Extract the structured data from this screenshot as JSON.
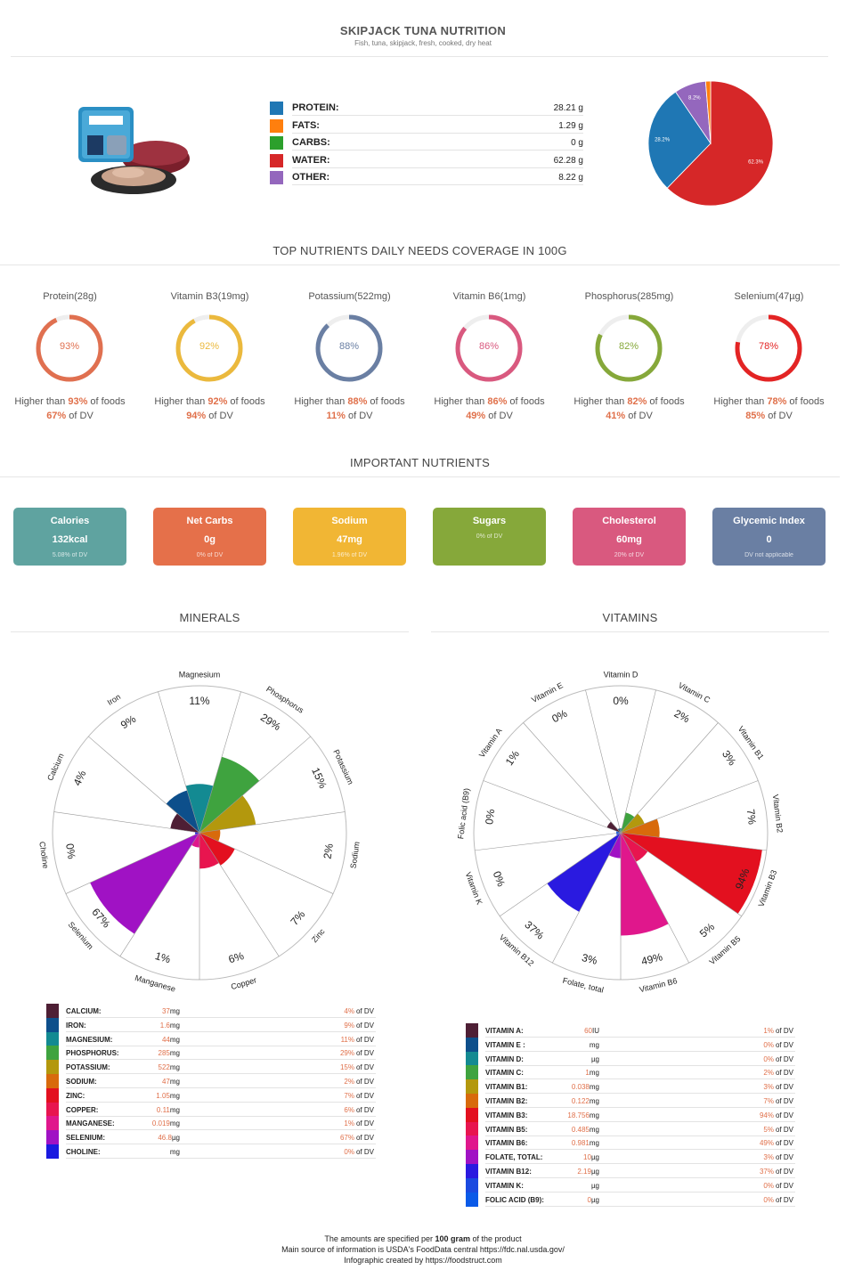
{
  "header": {
    "title": "SKIPJACK TUNA NUTRITION",
    "subtitle": "Fish, tuna, skipjack, fresh, cooked, dry heat"
  },
  "product_image": {
    "icon": "tuna-product-photo"
  },
  "macros": [
    {
      "label": "PROTEIN:",
      "value": "28.21 g",
      "color": "#1f77b4"
    },
    {
      "label": "FATS:",
      "value": "1.29 g",
      "color": "#ff7f0e"
    },
    {
      "label": "CARBS:",
      "value": "0 g",
      "color": "#2ca02c"
    },
    {
      "label": "WATER:",
      "value": "62.28 g",
      "color": "#d62728"
    },
    {
      "label": "OTHER:",
      "value": "8.22 g",
      "color": "#9467bd"
    }
  ],
  "coverage": {
    "title": "TOP NUTRIENTS DAILY NEEDS COVERAGE IN 100G",
    "items": [
      {
        "name": "Protein(28g)",
        "pct": 93,
        "pct_label": "93%",
        "higher_pre": "Higher than ",
        "higher_val": "93%",
        "higher_post": " of foods",
        "dv_val": "67%",
        "dv_post": " of DV",
        "color": "#e07050"
      },
      {
        "name": "Vitamin B3(19mg)",
        "pct": 92,
        "pct_label": "92%",
        "higher_pre": "Higher than ",
        "higher_val": "92%",
        "higher_post": " of foods",
        "dv_val": "94%",
        "dv_post": " of DV",
        "color": "#ebb93d"
      },
      {
        "name": "Potassium(522mg)",
        "pct": 88,
        "pct_label": "88%",
        "higher_pre": "Higher than ",
        "higher_val": "88%",
        "higher_post": " of foods",
        "dv_val": "11%",
        "dv_post": " of DV",
        "color": "#6a7fa3"
      },
      {
        "name": "Vitamin B6(1mg)",
        "pct": 86,
        "pct_label": "86%",
        "higher_pre": "Higher than ",
        "higher_val": "86%",
        "higher_post": " of foods",
        "dv_val": "49%",
        "dv_post": " of DV",
        "color": "#d9597f"
      },
      {
        "name": "Phosphorus(285mg)",
        "pct": 82,
        "pct_label": "82%",
        "higher_pre": "Higher than ",
        "higher_val": "82%",
        "higher_post": " of foods",
        "dv_val": "41%",
        "dv_post": " of DV",
        "color": "#86a83a"
      },
      {
        "name": "Selenium(47µg)",
        "pct": 78,
        "pct_label": "78%",
        "higher_pre": "Higher than ",
        "higher_val": "78%",
        "higher_post": " of foods",
        "dv_val": "85%",
        "dv_post": " of DV",
        "color": "#e32424"
      }
    ]
  },
  "important": {
    "title": "IMPORTANT NUTRIENTS",
    "cards": [
      {
        "label": "Calories",
        "value": "132kcal",
        "sub": "5.08% of DV",
        "color": "#5fa3a0"
      },
      {
        "label": "Net Carbs",
        "value": "0g",
        "sub": "0% of DV",
        "color": "#e5704a"
      },
      {
        "label": "Sodium",
        "value": "47mg",
        "sub": "1.96% of DV",
        "color": "#f1b634"
      },
      {
        "label": "Sugars",
        "value": "",
        "sub": "0% of DV",
        "color": "#86a83a"
      },
      {
        "label": "Cholesterol",
        "value": "60mg",
        "sub": "20% of DV",
        "color": "#d9597f"
      },
      {
        "label": "Glycemic Index",
        "value": "0",
        "sub": "DV not applicable",
        "color": "#6a7fa3"
      }
    ]
  },
  "minerals": {
    "title": "MINERALS",
    "rows": [
      {
        "name": "CALCIUM:",
        "amount": "37",
        "unit": "mg",
        "dv": "4%",
        "dv_suffix": "of DV",
        "color": "#4e1f35"
      },
      {
        "name": "IRON:",
        "amount": "1.6",
        "unit": "mg",
        "dv": "9%",
        "dv_suffix": "of DV",
        "color": "#0d4f8b"
      },
      {
        "name": "MAGNESIUM:",
        "amount": "44",
        "unit": "mg",
        "dv": "11%",
        "dv_suffix": "of DV",
        "color": "#138a92"
      },
      {
        "name": "PHOSPHORUS:",
        "amount": "285",
        "unit": "mg",
        "dv": "29%",
        "dv_suffix": "of DV",
        "color": "#3fa33f"
      },
      {
        "name": "POTASSIUM:",
        "amount": "522",
        "unit": "mg",
        "dv": "15%",
        "dv_suffix": "of DV",
        "color": "#b3980d"
      },
      {
        "name": "SODIUM:",
        "amount": "47",
        "unit": "mg",
        "dv": "2%",
        "dv_suffix": "of DV",
        "color": "#d86a0c"
      },
      {
        "name": "ZINC:",
        "amount": "1.05",
        "unit": "mg",
        "dv": "7%",
        "dv_suffix": "of DV",
        "color": "#e3101f"
      },
      {
        "name": "COPPER:",
        "amount": "0.11",
        "unit": "mg",
        "dv": "6%",
        "dv_suffix": "of DV",
        "color": "#e8154f"
      },
      {
        "name": "MANGANESE:",
        "amount": "0.019",
        "unit": "mg",
        "dv": "1%",
        "dv_suffix": "of DV",
        "color": "#e0178c"
      },
      {
        "name": "SELENIUM:",
        "amount": "46.8",
        "unit": "µg",
        "dv": "67%",
        "dv_suffix": "of DV",
        "color": "#a012c4"
      },
      {
        "name": "CHOLINE:",
        "amount": "",
        "unit": "mg",
        "dv": "0%",
        "dv_suffix": "of DV",
        "color": "#1a1ae0"
      }
    ]
  },
  "vitamins": {
    "title": "VITAMINS",
    "rows": [
      {
        "name": "VITAMIN A:",
        "amount": "60",
        "unit": "IU",
        "dv": "1%",
        "dv_suffix": "of DV",
        "color": "#4e1f35"
      },
      {
        "name": "VITAMIN E :",
        "amount": "",
        "unit": "mg",
        "dv": "0%",
        "dv_suffix": "of DV",
        "color": "#0d4f8b"
      },
      {
        "name": "VITAMIN D:",
        "amount": "",
        "unit": "µg",
        "dv": "0%",
        "dv_suffix": "of DV",
        "color": "#138a92"
      },
      {
        "name": "VITAMIN C:",
        "amount": "1",
        "unit": "mg",
        "dv": "2%",
        "dv_suffix": "of DV",
        "color": "#3fa33f"
      },
      {
        "name": "VITAMIN B1:",
        "amount": "0.038",
        "unit": "mg",
        "dv": "3%",
        "dv_suffix": "of DV",
        "color": "#b3980d"
      },
      {
        "name": "VITAMIN B2:",
        "amount": "0.122",
        "unit": "mg",
        "dv": "7%",
        "dv_suffix": "of DV",
        "color": "#d86a0c"
      },
      {
        "name": "VITAMIN B3:",
        "amount": "18.756",
        "unit": "mg",
        "dv": "94%",
        "dv_suffix": "of DV",
        "color": "#e3101f"
      },
      {
        "name": "VITAMIN B5:",
        "amount": "0.485",
        "unit": "mg",
        "dv": "5%",
        "dv_suffix": "of DV",
        "color": "#e8154f"
      },
      {
        "name": "VITAMIN B6:",
        "amount": "0.981",
        "unit": "mg",
        "dv": "49%",
        "dv_suffix": "of DV",
        "color": "#e0178c"
      },
      {
        "name": "FOLATE, TOTAL:",
        "amount": "10",
        "unit": "µg",
        "dv": "3%",
        "dv_suffix": "of DV",
        "color": "#a012c4"
      },
      {
        "name": "VITAMIN B12:",
        "amount": "2.19",
        "unit": "µg",
        "dv": "37%",
        "dv_suffix": "of DV",
        "color": "#2a1ae0"
      },
      {
        "name": "VITAMIN K:",
        "amount": "",
        "unit": "µg",
        "dv": "0%",
        "dv_suffix": "of DV",
        "color": "#1a4ae0"
      },
      {
        "name": "FOLIC ACID (B9):",
        "amount": "0",
        "unit": "µg",
        "dv": "0%",
        "dv_suffix": "of DV",
        "color": "#0a5ae8"
      }
    ]
  },
  "chart_data": [
    {
      "type": "pie",
      "categories": [
        "Protein",
        "Fats",
        "Carbs",
        "Water",
        "Other"
      ],
      "values": [
        28.21,
        1.29,
        0,
        62.28,
        8.22
      ],
      "data_labels": [
        "28.2%",
        "",
        "",
        "62.3%",
        "8.2%"
      ],
      "colors": [
        "#1f77b4",
        "#ff7f0e",
        "#2ca02c",
        "#d62728",
        "#9467bd"
      ]
    },
    {
      "type": "polar-area",
      "categories": [
        "Calcium",
        "Iron",
        "Magnesium",
        "Phosphorus",
        "Potassium",
        "Sodium",
        "Zinc",
        "Copper",
        "Manganese",
        "Selenium",
        "Choline"
      ],
      "values": [
        4,
        9,
        11,
        29,
        15,
        2,
        7,
        6,
        1,
        67,
        0
      ],
      "labels": [
        "4%",
        "9%",
        "11%",
        "29%",
        "15%",
        "2%",
        "7%",
        "6%",
        "1%",
        "67%",
        "0%"
      ],
      "colors": [
        "#4e1f35",
        "#0d4f8b",
        "#138a92",
        "#3fa33f",
        "#b3980d",
        "#d86a0c",
        "#e3101f",
        "#e8154f",
        "#e0178c",
        "#a012c4",
        "#1a1ae0"
      ]
    },
    {
      "type": "polar-area",
      "categories": [
        "Vitamin A",
        "Vitamin E",
        "Vitamin D",
        "Vitamin C",
        "Vitamin B1",
        "Vitamin B2",
        "Vitamin B3",
        "Vitamin B5",
        "Vitamin B6",
        "Folate, total",
        "Vitamin B12",
        "Vitamin K",
        "Folic acid (B9)"
      ],
      "values": [
        1,
        0,
        0,
        2,
        3,
        7,
        94,
        5,
        49,
        3,
        37,
        0,
        0
      ],
      "labels": [
        "1%",
        "0%",
        "0%",
        "2%",
        "3%",
        "7%",
        "94%",
        "5%",
        "49%",
        "3%",
        "37%",
        "0%",
        "0%"
      ],
      "colors": [
        "#4e1f35",
        "#0d4f8b",
        "#138a92",
        "#3fa33f",
        "#b3980d",
        "#d86a0c",
        "#e3101f",
        "#e8154f",
        "#e0178c",
        "#a012c4",
        "#2a1ae0",
        "#1a4ae0",
        "#0a5ae8"
      ]
    }
  ],
  "footer": {
    "line1_pre": "The amounts are specified per ",
    "line1_bold": "100 gram",
    "line1_post": " of the product",
    "line2": "Main source of information is USDA's FoodData central https://fdc.nal.usda.gov/",
    "line3": "Infographic created by https://foodstruct.com"
  }
}
